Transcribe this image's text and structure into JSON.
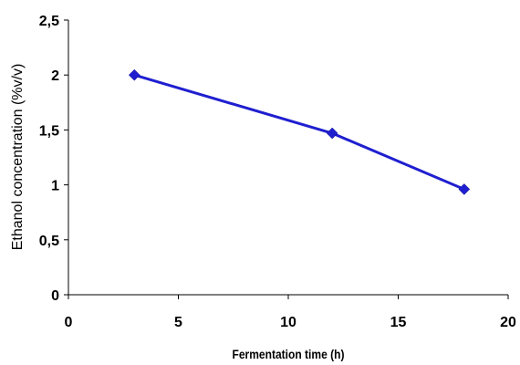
{
  "chart_data": {
    "type": "line",
    "title": "",
    "xlabel": "Fermentation time (h)",
    "ylabel": "Ethanol concentration (%v/v)",
    "xlim": [
      0,
      20
    ],
    "ylim": [
      0,
      2.5
    ],
    "x_ticks": [
      0,
      5,
      10,
      15,
      20
    ],
    "x_tick_labels": [
      "0",
      "5",
      "10",
      "15",
      "20"
    ],
    "y_ticks": [
      0,
      0.5,
      1,
      1.5,
      2,
      2.5
    ],
    "y_tick_labels": [
      "0",
      "0,5",
      "1",
      "1,5",
      "2",
      "2,5"
    ],
    "grid": false,
    "legend": "none",
    "series": [
      {
        "color": "#1f1fd0",
        "marker": "diamond",
        "points": [
          {
            "x": 3,
            "y": 2.0
          },
          {
            "x": 12,
            "y": 1.47
          },
          {
            "x": 18,
            "y": 0.96
          }
        ]
      }
    ]
  }
}
